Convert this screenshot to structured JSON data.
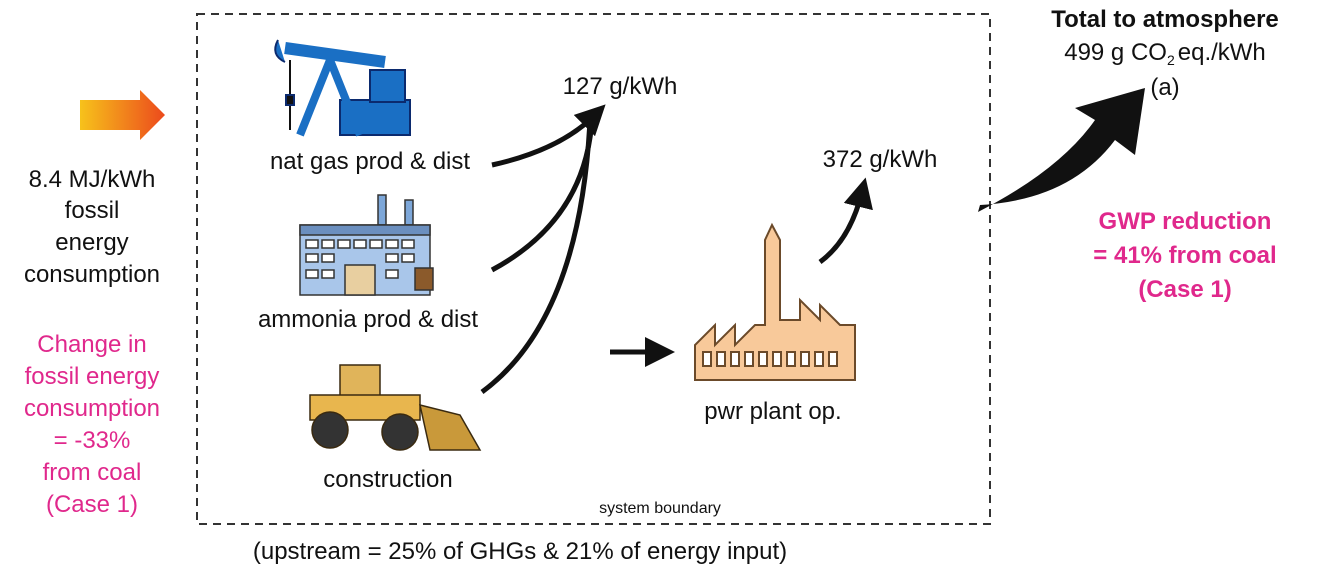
{
  "left_input": {
    "lines": [
      "8.4 MJ/kWh",
      "fossil",
      "energy",
      "consumption"
    ]
  },
  "left_change": {
    "lines": [
      "Change in",
      "fossil energy",
      "consumption",
      "= -33%",
      "from coal",
      "(Case 1)"
    ]
  },
  "nodes": [
    {
      "label": "nat gas prod & dist"
    },
    {
      "label": "ammonia prod & dist"
    },
    {
      "label": "construction"
    },
    {
      "label": "pwr plant op."
    }
  ],
  "flows": [
    {
      "label": "127 g/kWh"
    },
    {
      "label": "372 g/kWh"
    }
  ],
  "boundary": {
    "label": "system boundary"
  },
  "footer": {
    "text": "(upstream = 25% of GHGs & 21% of energy input)"
  },
  "total": {
    "title": "Total to atmosphere",
    "value_parts": [
      "499 g CO",
      "2",
      "eq./kWh"
    ],
    "tag": "(a)"
  },
  "gwp": {
    "lines": [
      "GWP reduction",
      "= 41% from coal",
      "(Case 1)"
    ]
  }
}
